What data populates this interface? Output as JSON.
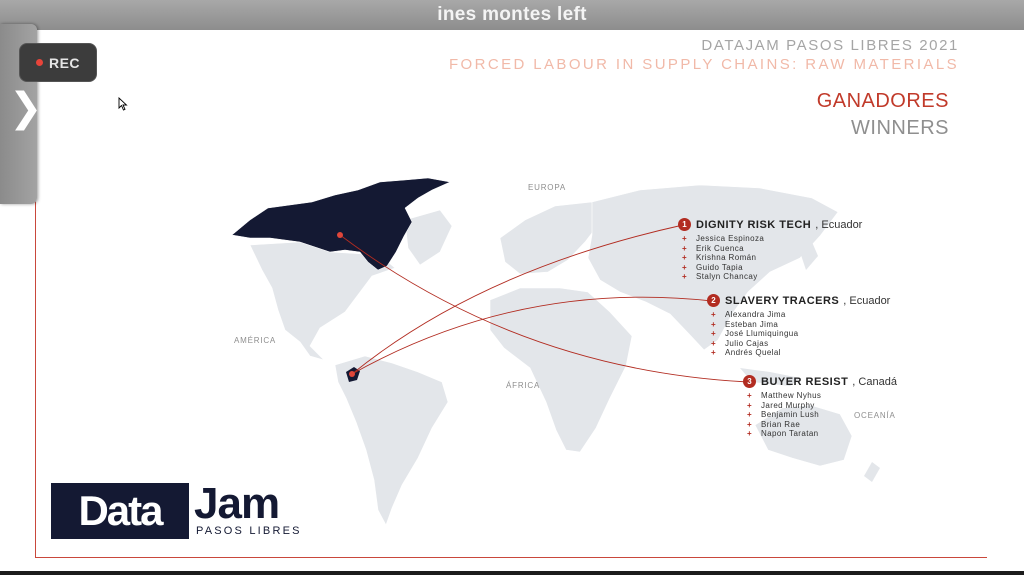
{
  "window": {
    "title": "ines montes left"
  },
  "recording": {
    "label": "REC"
  },
  "sidebar": {
    "toggle_icon": "chevron-right-icon"
  },
  "slide": {
    "header_line1": "DATAJAM PASOS LIBRES 2021",
    "header_line2": "FORCED LABOUR IN SUPPLY CHAINS: RAW MATERIALS",
    "title_es": "GANADORES",
    "title_en": "WINNERS",
    "map_labels": {
      "europa": "EUROPA",
      "america": "AMÉRICA",
      "africa": "ÁFRICA",
      "oceania": "OCEANÍA"
    },
    "winners": [
      {
        "rank": "1",
        "team": "DIGNITY RISK TECH",
        "country": ", Ecuador",
        "members": [
          "Jessica Espinoza",
          "Erik Cuenca",
          "Krishna Román",
          "Guido Tapia",
          "Stalyn Chancay"
        ]
      },
      {
        "rank": "2",
        "team": "SLAVERY TRACERS",
        "country": ", Ecuador",
        "members": [
          "Alexandra Jima",
          "Esteban Jima",
          "José Llumiquingua",
          "Julio Cajas",
          "Andrés Quelal"
        ]
      },
      {
        "rank": "3",
        "team": "BUYER RESIST",
        "country": ", Canadá",
        "members": [
          "Matthew Nyhus",
          "Jared Murphy",
          "Benjamin Lush",
          "Brian Rae",
          "Napon Taratan"
        ]
      }
    ],
    "logo": {
      "data": "Data",
      "jam": "Jam",
      "sub": "PASOS LIBRES"
    }
  },
  "colors": {
    "accent": "#b22c21",
    "highlight_country": "#141933",
    "land": "#e3e6ea"
  }
}
